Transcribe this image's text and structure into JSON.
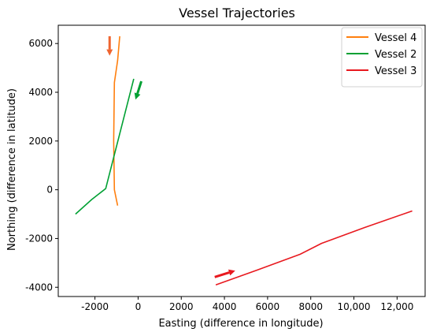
{
  "chart_data": {
    "type": "line",
    "title": "Vessel Trajectories",
    "xlabel": "Easting (difference in longitude)",
    "ylabel": "Northing (difference in latitude)",
    "xlim": [
      -3700,
      13300
    ],
    "ylim": [
      -4380,
      6750
    ],
    "xticks": [
      {
        "value": -2000,
        "label": "-2000"
      },
      {
        "value": 0,
        "label": "0"
      },
      {
        "value": 2000,
        "label": "2000"
      },
      {
        "value": 4000,
        "label": "4000"
      },
      {
        "value": 6000,
        "label": "6000"
      },
      {
        "value": 8000,
        "label": "8000"
      },
      {
        "value": 10000,
        "label": "10,000"
      },
      {
        "value": 12000,
        "label": "12,000"
      }
    ],
    "yticks": [
      {
        "value": -4000,
        "label": "-4000"
      },
      {
        "value": -2000,
        "label": "-2000"
      },
      {
        "value": 0,
        "label": "0"
      },
      {
        "value": 2000,
        "label": "2000"
      },
      {
        "value": 4000,
        "label": "4000"
      },
      {
        "value": 6000,
        "label": "6000"
      }
    ],
    "grid": false,
    "legend_position": "top-right",
    "series": [
      {
        "name": "Vessel 4",
        "color": "#ff7f0e",
        "points": [
          [
            -850,
            6300
          ],
          [
            -950,
            5300
          ],
          [
            -1100,
            4400
          ],
          [
            -1130,
            2000
          ],
          [
            -1100,
            0
          ],
          [
            -950,
            -650
          ]
        ]
      },
      {
        "name": "Vessel 2",
        "color": "#00a033",
        "points": [
          [
            -200,
            4550
          ],
          [
            -1500,
            50
          ],
          [
            -2150,
            -400
          ],
          [
            -2900,
            -1000
          ]
        ]
      },
      {
        "name": "Vessel 3",
        "color": "#e8191f",
        "points": [
          [
            3600,
            -3900
          ],
          [
            5500,
            -3300
          ],
          [
            7500,
            -2650
          ],
          [
            8500,
            -2200
          ],
          [
            10500,
            -1550
          ],
          [
            12700,
            -870
          ]
        ]
      }
    ],
    "annotations": [
      {
        "type": "arrow",
        "name": "vessel-4-direction-arrow",
        "color": "#ef6530",
        "from": [
          -1320,
          6300
        ],
        "to": [
          -1320,
          5500
        ]
      },
      {
        "type": "arrow",
        "name": "vessel-2-direction-arrow",
        "color": "#00a033",
        "from": [
          150,
          4450
        ],
        "to": [
          -120,
          3700
        ]
      },
      {
        "type": "arrow",
        "name": "vessel-3-direction-arrow",
        "color": "#e8191f",
        "from": [
          3550,
          -3580
        ],
        "to": [
          4500,
          -3320
        ]
      }
    ]
  }
}
